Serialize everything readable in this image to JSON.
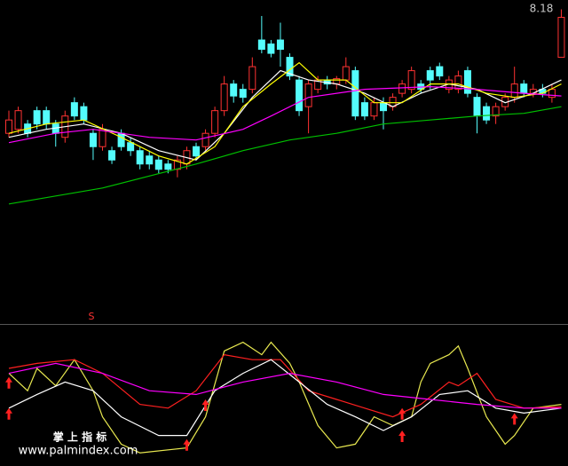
{
  "chart_data": [
    {
      "type": "candlestick",
      "up_color": "#ff3232",
      "down_color": "#54fcfc",
      "high_label": 8.18,
      "signal_text": "S",
      "ylim": [
        5.83,
        8.26
      ],
      "open": [
        7.26,
        7.29,
        7.33,
        7.43,
        7.43,
        7.33,
        7.23,
        7.49,
        7.46,
        7.26,
        7.16,
        7.13,
        7.26,
        7.19,
        7.13,
        7.09,
        7.06,
        7.03,
        6.99,
        7.03,
        7.16,
        7.16,
        7.26,
        7.43,
        7.63,
        7.59,
        7.59,
        7.96,
        7.93,
        7.96,
        7.83,
        7.66,
        7.46,
        7.59,
        7.66,
        7.63,
        7.66,
        7.73,
        7.49,
        7.39,
        7.49,
        7.46,
        7.56,
        7.59,
        7.63,
        7.73,
        7.76,
        7.59,
        7.59,
        7.73,
        7.53,
        7.46,
        7.39,
        7.46,
        7.53,
        7.63,
        7.56,
        7.59,
        7.53,
        7.83
      ],
      "high": [
        7.43,
        7.46,
        7.36,
        7.46,
        7.46,
        7.36,
        7.43,
        7.53,
        7.49,
        7.29,
        7.33,
        7.16,
        7.29,
        7.23,
        7.16,
        7.13,
        7.09,
        7.06,
        7.09,
        7.16,
        7.19,
        7.29,
        7.46,
        7.69,
        7.66,
        7.63,
        7.83,
        8.14,
        7.96,
        8.09,
        7.86,
        7.69,
        7.66,
        7.69,
        7.69,
        7.69,
        7.83,
        7.76,
        7.53,
        7.53,
        7.53,
        7.56,
        7.66,
        7.76,
        7.66,
        7.76,
        7.79,
        7.69,
        7.73,
        7.76,
        7.56,
        7.49,
        7.49,
        7.56,
        7.76,
        7.66,
        7.63,
        7.63,
        7.63,
        8.19
      ],
      "low": [
        7.23,
        7.26,
        7.23,
        7.29,
        7.29,
        7.16,
        7.19,
        7.36,
        7.33,
        7.06,
        7.13,
        7.03,
        7.13,
        7.09,
        6.99,
        6.99,
        6.96,
        6.96,
        6.93,
        6.99,
        7.06,
        7.13,
        7.23,
        7.39,
        7.49,
        7.49,
        7.56,
        7.86,
        7.83,
        7.76,
        7.66,
        7.39,
        7.26,
        7.56,
        7.59,
        7.59,
        7.63,
        7.36,
        7.36,
        7.36,
        7.29,
        7.43,
        7.53,
        7.56,
        7.56,
        7.59,
        7.66,
        7.56,
        7.56,
        7.53,
        7.26,
        7.33,
        7.33,
        7.43,
        7.49,
        7.53,
        7.53,
        7.53,
        7.49,
        7.83
      ],
      "close": [
        7.36,
        7.43,
        7.26,
        7.33,
        7.33,
        7.26,
        7.39,
        7.39,
        7.36,
        7.16,
        7.29,
        7.06,
        7.16,
        7.13,
        7.03,
        7.03,
        6.99,
        6.99,
        7.06,
        7.13,
        7.09,
        7.26,
        7.43,
        7.63,
        7.54,
        7.53,
        7.76,
        7.89,
        7.86,
        7.89,
        7.69,
        7.43,
        7.63,
        7.66,
        7.63,
        7.67,
        7.76,
        7.39,
        7.39,
        7.49,
        7.43,
        7.53,
        7.63,
        7.73,
        7.59,
        7.66,
        7.69,
        7.66,
        7.69,
        7.56,
        7.39,
        7.36,
        7.46,
        7.53,
        7.63,
        7.56,
        7.59,
        7.56,
        7.59,
        8.13
      ],
      "series": [
        {
          "name": "MA5",
          "color": "#ffffff",
          "x": [
            0,
            4,
            8,
            12,
            16,
            20,
            23,
            26,
            29,
            32,
            35,
            38,
            41,
            44,
            47,
            50,
            53,
            56,
            59
          ],
          "values": [
            7.23,
            7.29,
            7.33,
            7.26,
            7.13,
            7.06,
            7.26,
            7.53,
            7.73,
            7.66,
            7.63,
            7.56,
            7.46,
            7.56,
            7.63,
            7.59,
            7.49,
            7.56,
            7.66
          ]
        },
        {
          "name": "MA10",
          "color": "#ffff00",
          "x": [
            0,
            4,
            8,
            12,
            16,
            19,
            22,
            25,
            28,
            31,
            33,
            36,
            39,
            42,
            45,
            48,
            51,
            54,
            57,
            59
          ],
          "values": [
            7.26,
            7.33,
            7.36,
            7.23,
            7.09,
            7.03,
            7.16,
            7.46,
            7.63,
            7.79,
            7.66,
            7.66,
            7.49,
            7.49,
            7.63,
            7.63,
            7.56,
            7.53,
            7.56,
            7.63
          ]
        },
        {
          "name": "MA20",
          "color": "#ff00ff",
          "x": [
            0,
            5,
            9,
            15,
            20,
            25,
            28,
            32,
            38,
            45,
            50,
            55,
            59
          ],
          "values": [
            7.19,
            7.26,
            7.29,
            7.23,
            7.21,
            7.29,
            7.39,
            7.53,
            7.59,
            7.61,
            7.59,
            7.56,
            7.54
          ]
        },
        {
          "name": "MA60",
          "color": "#00c000",
          "x": [
            0,
            10,
            20,
            25,
            30,
            35,
            40,
            45,
            50,
            55,
            59
          ],
          "values": [
            6.73,
            6.85,
            7.03,
            7.13,
            7.21,
            7.26,
            7.33,
            7.36,
            7.39,
            7.41,
            7.46
          ]
        }
      ]
    },
    {
      "type": "line",
      "ylim": [
        0,
        100
      ],
      "series": [
        {
          "name": "J",
          "color": "#e8e850",
          "x": [
            0,
            2,
            3,
            5,
            7,
            9,
            10,
            12,
            14,
            19,
            21,
            23,
            25,
            27,
            28,
            30,
            31,
            33,
            35,
            37,
            39,
            41,
            43,
            44,
            45,
            47,
            48,
            49,
            51,
            53,
            54,
            56,
            59
          ],
          "values": [
            71,
            57,
            75,
            61,
            82,
            57,
            36,
            14,
            7,
            11,
            36,
            89,
            96,
            86,
            96,
            79,
            64,
            29,
            11,
            14,
            36,
            29,
            36,
            64,
            79,
            86,
            93,
            75,
            36,
            14,
            21,
            43,
            46
          ]
        },
        {
          "name": "K",
          "color": "#ff2020",
          "x": [
            0,
            3,
            7,
            10,
            14,
            17,
            20,
            23,
            26,
            29,
            32,
            35,
            38,
            41,
            44,
            47,
            48,
            50,
            52,
            55,
            59
          ],
          "values": [
            75,
            79,
            82,
            71,
            46,
            43,
            57,
            86,
            82,
            82,
            57,
            50,
            43,
            36,
            46,
            64,
            61,
            71,
            50,
            43,
            44
          ]
        },
        {
          "name": "D",
          "color": "#ffffff",
          "x": [
            0,
            3,
            6,
            9,
            12,
            16,
            19,
            22,
            25,
            28,
            31,
            34,
            37,
            40,
            43,
            46,
            49,
            52,
            55,
            59
          ],
          "values": [
            43,
            54,
            64,
            57,
            36,
            21,
            21,
            57,
            71,
            82,
            64,
            46,
            36,
            25,
            36,
            54,
            57,
            43,
            39,
            43
          ]
        },
        {
          "name": "M",
          "color": "#ff00ff",
          "x": [
            0,
            5,
            10,
            15,
            20,
            25,
            30,
            35,
            40,
            45,
            50,
            55,
            59
          ],
          "values": [
            71,
            79,
            71,
            57,
            54,
            64,
            71,
            64,
            54,
            50,
            46,
            43,
            43
          ]
        }
      ],
      "signals": [
        {
          "x": 0,
          "value": 68
        },
        {
          "x": 0,
          "value": 43
        },
        {
          "x": 19,
          "value": 18
        },
        {
          "x": 21,
          "value": 50
        },
        {
          "x": 42,
          "value": 43
        },
        {
          "x": 42,
          "value": 25
        },
        {
          "x": 54,
          "value": 39
        }
      ],
      "signal_color": "#ff2020"
    }
  ],
  "watermark": {
    "title": "掌 上 指 标",
    "url": "www.palmindex.com"
  }
}
